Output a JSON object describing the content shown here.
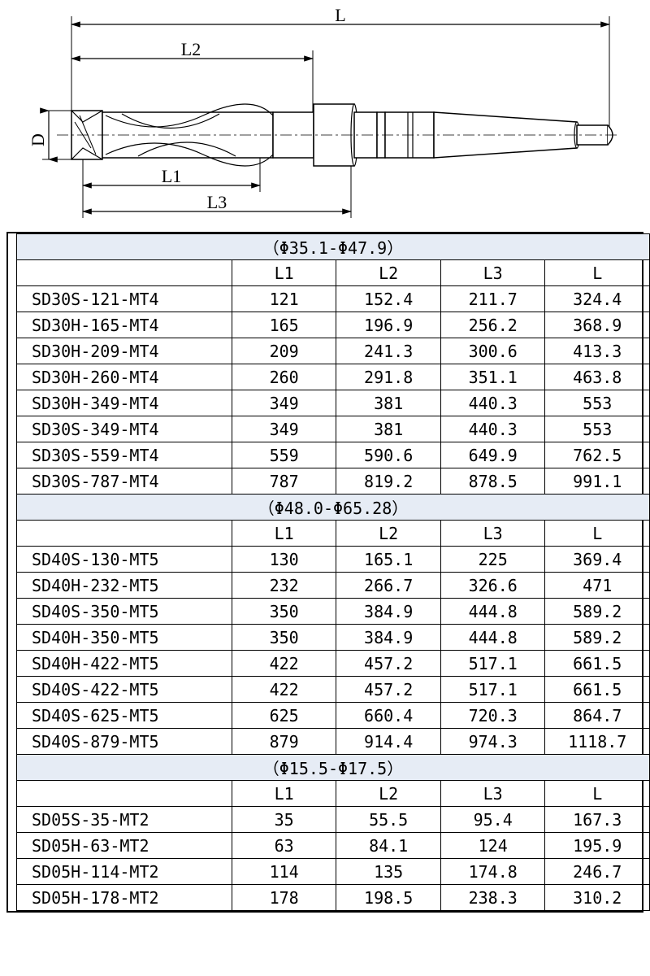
{
  "diagram": {
    "labels": {
      "L": "L",
      "L2": "L2",
      "L1": "L1",
      "L3": "L3",
      "D": "D"
    },
    "stroke": "#000000",
    "stroke_width": 1.4,
    "font_size": 22,
    "font_family": "serif"
  },
  "tables": {
    "col_widths_pct": [
      34,
      16.5,
      16.5,
      16.5,
      16.5
    ],
    "header_bg": "#e6ecf5",
    "border_color": "#000000",
    "col_headers": [
      "",
      "L1",
      "L2",
      "L3",
      "L"
    ],
    "groups": [
      {
        "title": "（Φ35.1-Φ47.9）",
        "rows": [
          {
            "name": "SD30S-121-MT4",
            "v": [
              "121",
              "152.4",
              "211.7",
              "324.4"
            ]
          },
          {
            "name": "SD30H-165-MT4",
            "v": [
              "165",
              "196.9",
              "256.2",
              "368.9"
            ]
          },
          {
            "name": "SD30H-209-MT4",
            "v": [
              "209",
              "241.3",
              "300.6",
              "413.3"
            ]
          },
          {
            "name": "SD30H-260-MT4",
            "v": [
              "260",
              "291.8",
              "351.1",
              "463.8"
            ]
          },
          {
            "name": "SD30H-349-MT4",
            "v": [
              "349",
              "381",
              "440.3",
              "553"
            ]
          },
          {
            "name": "SD30S-349-MT4",
            "v": [
              "349",
              "381",
              "440.3",
              "553"
            ]
          },
          {
            "name": "SD30S-559-MT4",
            "v": [
              "559",
              "590.6",
              "649.9",
              "762.5"
            ]
          },
          {
            "name": "SD30S-787-MT4",
            "v": [
              "787",
              "819.2",
              "878.5",
              "991.1"
            ]
          }
        ]
      },
      {
        "title": "（Φ48.0-Φ65.28）",
        "rows": [
          {
            "name": "SD40S-130-MT5",
            "v": [
              "130",
              "165.1",
              "225",
              "369.4"
            ]
          },
          {
            "name": "SD40H-232-MT5",
            "v": [
              "232",
              "266.7",
              "326.6",
              "471"
            ]
          },
          {
            "name": "SD40S-350-MT5",
            "v": [
              "350",
              "384.9",
              "444.8",
              "589.2"
            ]
          },
          {
            "name": "SD40H-350-MT5",
            "v": [
              "350",
              "384.9",
              "444.8",
              "589.2"
            ]
          },
          {
            "name": "SD40H-422-MT5",
            "v": [
              "422",
              "457.2",
              "517.1",
              "661.5"
            ]
          },
          {
            "name": "SD40S-422-MT5",
            "v": [
              "422",
              "457.2",
              "517.1",
              "661.5"
            ]
          },
          {
            "name": "SD40S-625-MT5",
            "v": [
              "625",
              "660.4",
              "720.3",
              "864.7"
            ]
          },
          {
            "name": "SD40S-879-MT5",
            "v": [
              "879",
              "914.4",
              "974.3",
              "1118.7"
            ]
          }
        ]
      },
      {
        "title": "（Φ15.5-Φ17.5）",
        "rows": [
          {
            "name": "SD05S-35-MT2",
            "v": [
              "35",
              "55.5",
              "95.4",
              "167.3"
            ]
          },
          {
            "name": "SD05H-63-MT2",
            "v": [
              "63",
              "84.1",
              "124",
              "195.9"
            ]
          },
          {
            "name": "SD05H-114-MT2",
            "v": [
              "114",
              "135",
              "174.8",
              "246.7"
            ]
          },
          {
            "name": "SD05H-178-MT2",
            "v": [
              "178",
              "198.5",
              "238.3",
              "310.2"
            ]
          }
        ]
      }
    ]
  }
}
